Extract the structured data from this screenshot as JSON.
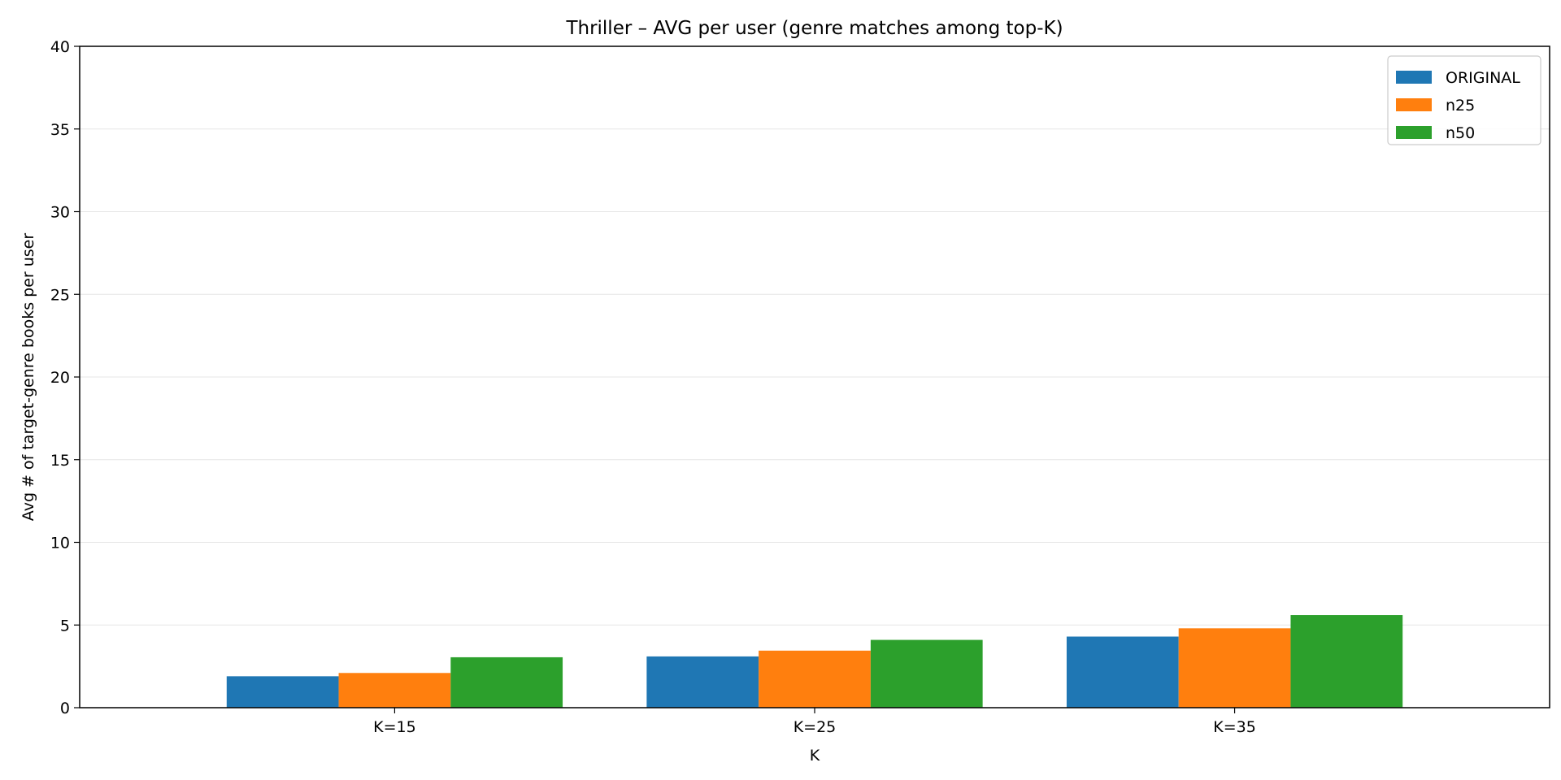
{
  "chart_data": {
    "type": "bar",
    "title": "Thriller – AVG per user (genre matches among top-K)",
    "xlabel": "K",
    "ylabel": "Avg # of target-genre books per user",
    "categories": [
      "K=15",
      "K=25",
      "K=35"
    ],
    "series": [
      {
        "name": "ORIGINAL",
        "color": "#1f77b4",
        "values": [
          1.9,
          3.1,
          4.3
        ]
      },
      {
        "name": "n25",
        "color": "#ff7f0e",
        "values": [
          2.1,
          3.45,
          4.8
        ]
      },
      {
        "name": "n50",
        "color": "#2ca02c",
        "values": [
          3.05,
          4.1,
          5.6
        ]
      }
    ],
    "ylim": [
      0,
      40
    ],
    "yticks": [
      0,
      5,
      10,
      15,
      20,
      25,
      30,
      35,
      40
    ],
    "grid": "horizontal",
    "legend_position": "top-right"
  }
}
